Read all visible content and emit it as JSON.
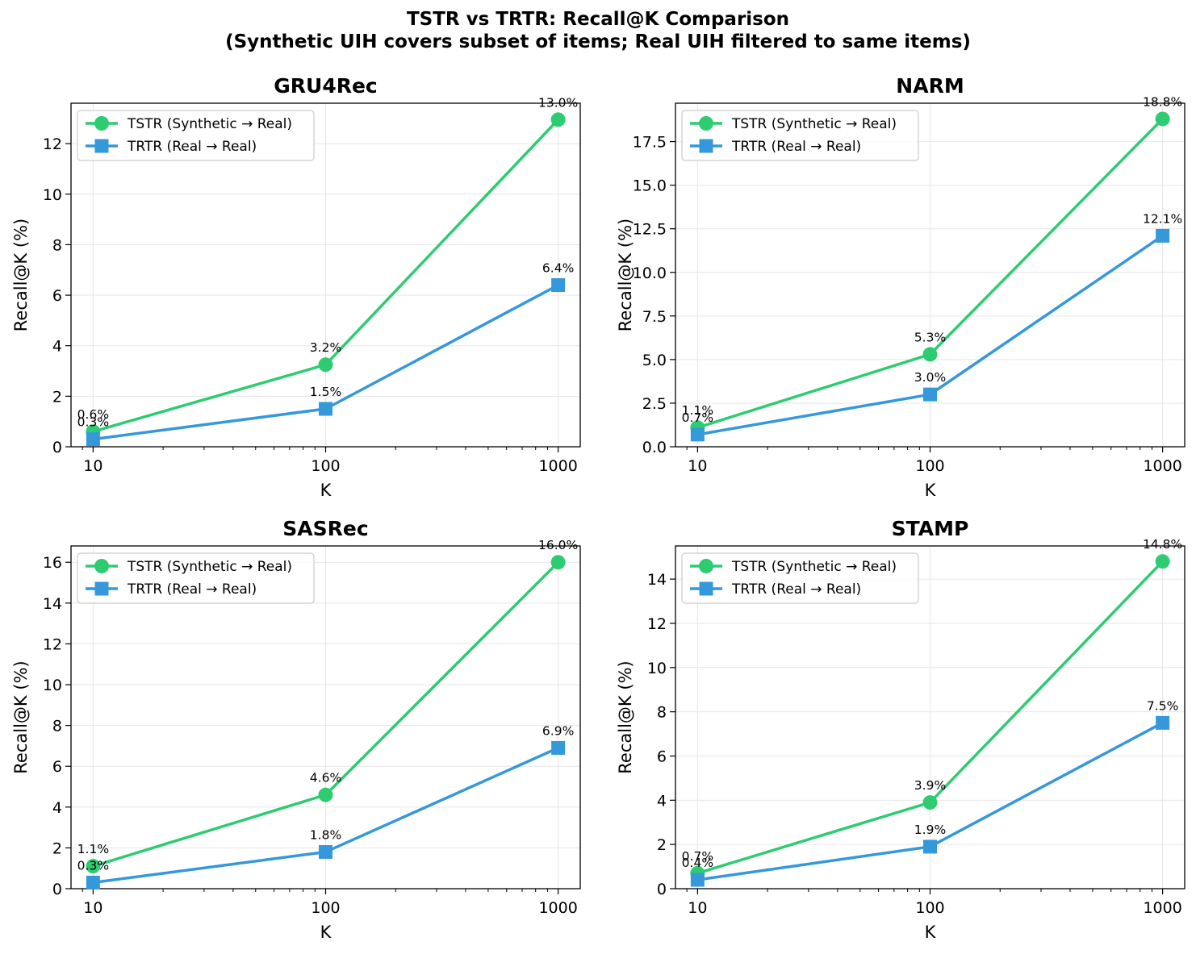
{
  "figure": {
    "title_line1": "TSTR vs TRTR: Recall@K Comparison",
    "title_line2": "(Synthetic UIH covers subset of items; Real UIH filtered to same items)"
  },
  "colors": {
    "tstr": "#2ecc71",
    "trtr": "#3498db"
  },
  "chart_data": [
    {
      "type": "line",
      "title": "GRU4Rec",
      "xlabel": "K",
      "ylabel": "Recall@K (%)",
      "xscale": "log",
      "x": [
        10,
        100,
        1000
      ],
      "x_tick_labels": [
        "10",
        "100",
        "1000"
      ],
      "ylim": [
        0,
        13.6
      ],
      "y_ticks": [
        0,
        2,
        4,
        6,
        8,
        10,
        12
      ],
      "y_tick_labels": [
        "0",
        "2",
        "4",
        "6",
        "8",
        "10",
        "12"
      ],
      "grid": true,
      "legend": "top-left",
      "series": [
        {
          "name": "TSTR (Synthetic → Real)",
          "marker": "circle",
          "color": "#2ecc71",
          "values": [
            0.6,
            3.25,
            12.95
          ],
          "labels": [
            "0.6%",
            "3.2%",
            "13.0%"
          ]
        },
        {
          "name": "TRTR (Real → Real)",
          "marker": "square",
          "color": "#3498db",
          "values": [
            0.3,
            1.5,
            6.4
          ],
          "labels": [
            "0.3%",
            "1.5%",
            "6.4%"
          ]
        }
      ]
    },
    {
      "type": "line",
      "title": "NARM",
      "xlabel": "K",
      "ylabel": "Recall@K (%)",
      "xscale": "log",
      "x": [
        10,
        100,
        1000
      ],
      "x_tick_labels": [
        "10",
        "100",
        "1000"
      ],
      "ylim": [
        0,
        19.7
      ],
      "y_ticks": [
        0,
        2.5,
        5,
        7.5,
        10,
        12.5,
        15,
        17.5
      ],
      "y_tick_labels": [
        "0.0",
        "2.5",
        "5.0",
        "7.5",
        "10.0",
        "12.5",
        "15.0",
        "17.5"
      ],
      "grid": true,
      "legend": "top-left",
      "series": [
        {
          "name": "TSTR (Synthetic → Real)",
          "marker": "circle",
          "color": "#2ecc71",
          "values": [
            1.1,
            5.3,
            18.8
          ],
          "labels": [
            "1.1%",
            "5.3%",
            "18.8%"
          ]
        },
        {
          "name": "TRTR (Real → Real)",
          "marker": "square",
          "color": "#3498db",
          "values": [
            0.7,
            3.0,
            12.1
          ],
          "labels": [
            "0.7%",
            "3.0%",
            "12.1%"
          ]
        }
      ]
    },
    {
      "type": "line",
      "title": "SASRec",
      "xlabel": "K",
      "ylabel": "Recall@K (%)",
      "xscale": "log",
      "x": [
        10,
        100,
        1000
      ],
      "x_tick_labels": [
        "10",
        "100",
        "1000"
      ],
      "ylim": [
        0,
        16.8
      ],
      "y_ticks": [
        0,
        2,
        4,
        6,
        8,
        10,
        12,
        14,
        16
      ],
      "y_tick_labels": [
        "0",
        "2",
        "4",
        "6",
        "8",
        "10",
        "12",
        "14",
        "16"
      ],
      "grid": true,
      "legend": "top-left",
      "series": [
        {
          "name": "TSTR (Synthetic → Real)",
          "marker": "circle",
          "color": "#2ecc71",
          "values": [
            1.1,
            4.6,
            16.0
          ],
          "labels": [
            "1.1%",
            "4.6%",
            "16.0%"
          ]
        },
        {
          "name": "TRTR (Real → Real)",
          "marker": "square",
          "color": "#3498db",
          "values": [
            0.3,
            1.8,
            6.9
          ],
          "labels": [
            "0.3%",
            "1.8%",
            "6.9%"
          ]
        }
      ]
    },
    {
      "type": "line",
      "title": "STAMP",
      "xlabel": "K",
      "ylabel": "Recall@K (%)",
      "xscale": "log",
      "x": [
        10,
        100,
        1000
      ],
      "x_tick_labels": [
        "10",
        "100",
        "1000"
      ],
      "ylim": [
        0,
        15.5
      ],
      "y_ticks": [
        0,
        2,
        4,
        6,
        8,
        10,
        12,
        14
      ],
      "y_tick_labels": [
        "0",
        "2",
        "4",
        "6",
        "8",
        "10",
        "12",
        "14"
      ],
      "grid": true,
      "legend": "top-left",
      "series": [
        {
          "name": "TSTR (Synthetic → Real)",
          "marker": "circle",
          "color": "#2ecc71",
          "values": [
            0.7,
            3.9,
            14.8
          ],
          "labels": [
            "0.7%",
            "3.9%",
            "14.8%"
          ]
        },
        {
          "name": "TRTR (Real → Real)",
          "marker": "square",
          "color": "#3498db",
          "values": [
            0.4,
            1.9,
            7.5
          ],
          "labels": [
            "0.4%",
            "1.9%",
            "7.5%"
          ]
        }
      ]
    }
  ]
}
